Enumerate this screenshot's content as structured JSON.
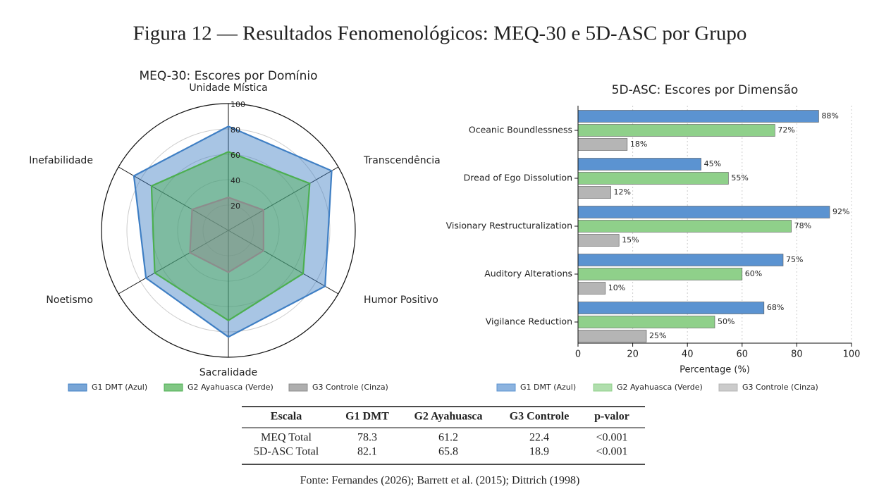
{
  "title": "Figura 12 — Resultados Fenomenológicos: MEQ-30 e 5D-ASC por Grupo",
  "chart_data": [
    {
      "type": "radar",
      "title": "MEQ-30: Escores por Domínio",
      "categories": [
        "Unidade Mística",
        "Transcendência",
        "Humor Positivo",
        "Sacralidade",
        "Noetismo",
        "Inefabilidade"
      ],
      "rlim": [
        0,
        100
      ],
      "rticks": [
        20,
        40,
        60,
        80,
        100
      ],
      "series": [
        {
          "name": "G1 DMT (Azul)",
          "color": "#3f7fc4",
          "values": [
            82,
            94,
            88,
            84,
            75,
            86
          ]
        },
        {
          "name": "G2 Ayahuasca (Verde)",
          "color": "#4caf50",
          "values": [
            62,
            74,
            68,
            71,
            67,
            70
          ]
        },
        {
          "name": "G3 Controle (Cinza)",
          "color": "#8c8c8c",
          "values": [
            26,
            32,
            32,
            33,
            35,
            33
          ]
        }
      ]
    },
    {
      "type": "bar",
      "orientation": "horizontal",
      "title": "5D-ASC: Escores por Dimensão",
      "categories": [
        "Oceanic Boundlessness",
        "Dread of Ego Dissolution",
        "Visionary Restructuralization",
        "Auditory Alterations",
        "Vigilance Reduction"
      ],
      "xlabel": "Percentage (%)",
      "xlim": [
        0,
        100
      ],
      "xticks": [
        0,
        20,
        40,
        60,
        80,
        100
      ],
      "grid": true,
      "series": [
        {
          "name": "G1 DMT (Azul)",
          "color": "#5b93d1",
          "values": [
            88,
            45,
            92,
            75,
            68
          ],
          "value_labels": [
            "88%",
            "45%",
            "92%",
            "75%",
            "68%"
          ]
        },
        {
          "name": "G2 Ayahuasca (Verde)",
          "color": "#8fd08a",
          "values": [
            72,
            55,
            78,
            60,
            50
          ],
          "value_labels": [
            "72%",
            "55%",
            "78%",
            "60%",
            "50%"
          ]
        },
        {
          "name": "G3 Controle (Cinza)",
          "color": "#b5b5b5",
          "values": [
            18,
            12,
            15,
            10,
            25
          ],
          "value_labels": [
            "18%",
            "12%",
            "15%",
            "10%",
            "25%"
          ]
        }
      ]
    }
  ],
  "table": {
    "header": [
      "Escala",
      "G1 DMT",
      "G2 Ayahuasca",
      "G3 Controle",
      "p-valor"
    ],
    "rows": [
      [
        "MEQ Total",
        78.3,
        61.2,
        22.4,
        "<0.001"
      ],
      [
        "5D-ASC Total",
        82.1,
        65.8,
        18.9,
        "<0.001"
      ]
    ]
  },
  "source": "Fonte: Fernandes (2026); Barrett et al. (2015); Dittrich (1998)"
}
